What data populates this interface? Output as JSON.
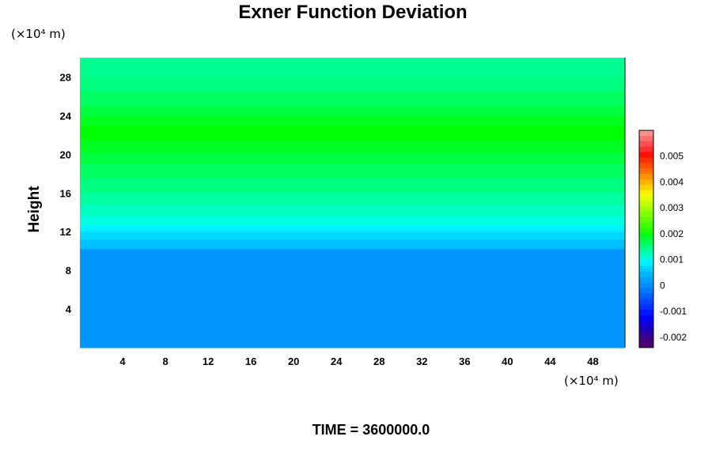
{
  "chart_data": {
    "type": "heatmap",
    "title": "Exner Function Deviation",
    "ylabel": "Height",
    "y_unit_label": "(×10⁴ m)",
    "x_unit_label": "(×10⁴ m)",
    "time_label": "TIME = 3600000.0",
    "x_ticks": [
      "4",
      "8",
      "12",
      "16",
      "20",
      "24",
      "28",
      "32",
      "36",
      "40",
      "44",
      "48"
    ],
    "y_ticks": [
      "4",
      "8",
      "12",
      "16",
      "20",
      "24",
      "28"
    ],
    "xlim": [
      0,
      51
    ],
    "ylim": [
      0,
      30
    ],
    "colorbar": {
      "ticks": [
        "0.005",
        "0.004",
        "0.003",
        "0.002",
        "0.001",
        "0",
        "-0.001",
        "-0.002"
      ],
      "tick_values": [
        0.005,
        0.004,
        0.003,
        0.002,
        0.001,
        0,
        -0.001,
        -0.002
      ],
      "range": [
        -0.0024,
        0.006
      ],
      "levels_top_to_bottom": [
        "#ff9090",
        "#ff7070",
        "#ff5050",
        "#ff3030",
        "#ff1000",
        "#ff3000",
        "#ff5000",
        "#ff7000",
        "#ff9000",
        "#ffb000",
        "#ffd000",
        "#fff000",
        "#e0ff00",
        "#c0ff00",
        "#a0ff00",
        "#80ff00",
        "#60ff00",
        "#40ff00",
        "#20ff00",
        "#00ff20",
        "#00ff50",
        "#00ff80",
        "#00ffb0",
        "#00ffe0",
        "#00f0ff",
        "#00d0ff",
        "#00b8ff",
        "#00a0ff",
        "#0090ff",
        "#0078ff",
        "#0060ff",
        "#0048ff",
        "#0030ff",
        "#0018ff",
        "#0000ff",
        "#1000e0",
        "#2000c0",
        "#3000a0",
        "#400080",
        "#500070"
      ]
    },
    "field_bands": [
      {
        "y": [
          29.8,
          30.0
        ],
        "color": "#00ffa0"
      },
      {
        "y": [
          28.0,
          29.8
        ],
        "color": "#00ff90"
      },
      {
        "y": [
          26.5,
          28.0
        ],
        "color": "#00ff80"
      },
      {
        "y": [
          25.0,
          26.5
        ],
        "color": "#00ff60"
      },
      {
        "y": [
          24.0,
          25.0
        ],
        "color": "#00ff40"
      },
      {
        "y": [
          23.0,
          24.0
        ],
        "color": "#00ff20"
      },
      {
        "y": [
          21.5,
          23.0
        ],
        "color": "#00ff00"
      },
      {
        "y": [
          20.2,
          21.5
        ],
        "color": "#00ff20"
      },
      {
        "y": [
          19.0,
          20.2
        ],
        "color": "#00ff40"
      },
      {
        "y": [
          17.5,
          19.0
        ],
        "color": "#00ff60"
      },
      {
        "y": [
          16.0,
          17.5
        ],
        "color": "#00ff80"
      },
      {
        "y": [
          14.8,
          16.0
        ],
        "color": "#00ffa0"
      },
      {
        "y": [
          13.6,
          14.8
        ],
        "color": "#00ffc0"
      },
      {
        "y": [
          12.6,
          13.6
        ],
        "color": "#00ffe0"
      },
      {
        "y": [
          12.0,
          12.6
        ],
        "color": "#00f0ff"
      },
      {
        "y": [
          11.2,
          12.0
        ],
        "color": "#00d8ff"
      },
      {
        "y": [
          10.2,
          11.2
        ],
        "color": "#00c0ff"
      },
      {
        "y": [
          0.0,
          10.2
        ],
        "color": "#0098ff"
      }
    ]
  }
}
